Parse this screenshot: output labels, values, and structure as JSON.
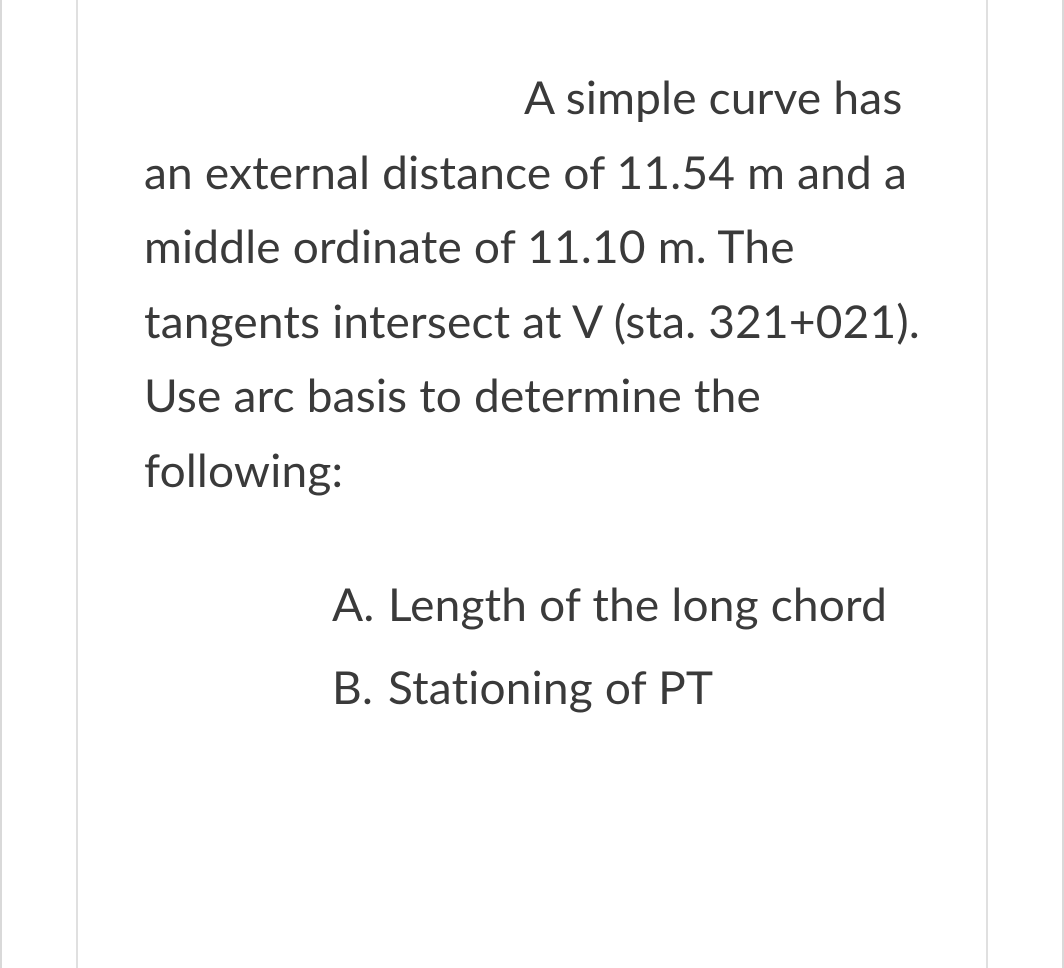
{
  "text_color": "#3a3a3a",
  "background_color": "#ffffff",
  "border_color": "#d9d9d9",
  "font_size_pt": 34,
  "problem_statement": "A simple curve has an external distance of 11.54 m and a middle ordinate of 11.10 m. The tangents intersect at V (sta. 321+021). Use arc basis to determine the following:",
  "questions": [
    {
      "label": "A.",
      "text": "Length of the long chord"
    },
    {
      "label": "B.",
      "text": "Stationing of PT"
    }
  ]
}
